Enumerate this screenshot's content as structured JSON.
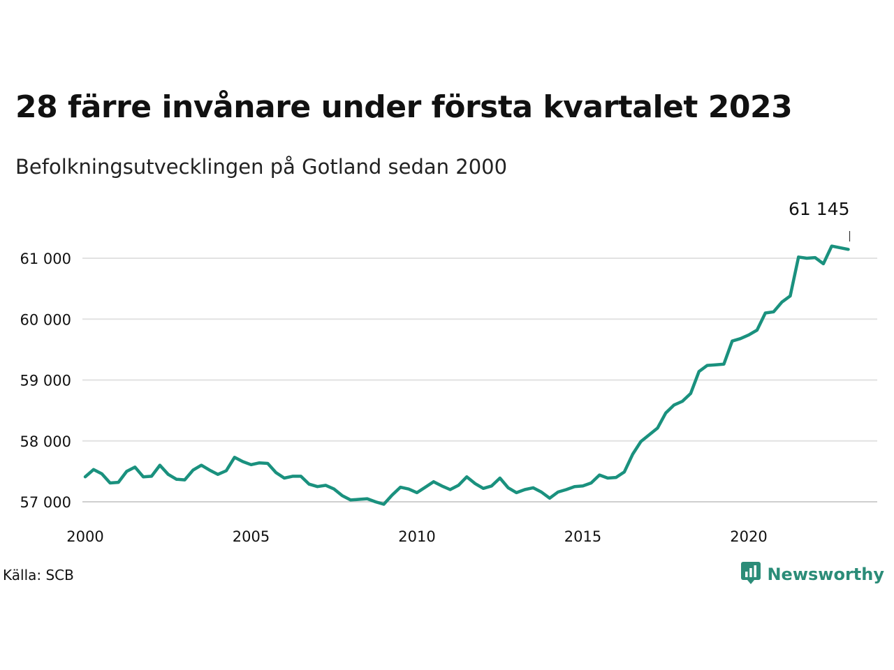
{
  "title": "28 färre invånare under första kvartalet 2023",
  "subtitle": "Befolkningsutvecklingen på Gotland sedan 2000",
  "source": "Källa: SCB",
  "brand": {
    "name": "Newsworthy",
    "icon": "newsworthy-logo-icon",
    "color": "#2b8c78"
  },
  "chart_data": {
    "type": "line",
    "x_label_format": "year",
    "xlim": [
      2000,
      2024
    ],
    "ylim": [
      56800,
      61500
    ],
    "x_ticks": [
      {
        "value": 2000,
        "label": "2000"
      },
      {
        "value": 2005,
        "label": "2005"
      },
      {
        "value": 2010,
        "label": "2010"
      },
      {
        "value": 2015,
        "label": "2015"
      },
      {
        "value": 2020,
        "label": "2020"
      }
    ],
    "y_ticks": [
      {
        "value": 57000,
        "label": "57 000"
      },
      {
        "value": 58000,
        "label": "58 000"
      },
      {
        "value": 59000,
        "label": "59 000"
      },
      {
        "value": 60000,
        "label": "60 000"
      },
      {
        "value": 61000,
        "label": "61 000"
      }
    ],
    "grid": true,
    "line_color": "#1a917e",
    "annotation": {
      "x": 2023.0,
      "y": 61145,
      "label": "61 145"
    },
    "series": [
      {
        "points": [
          [
            2000.0,
            57410
          ],
          [
            2000.25,
            57530
          ],
          [
            2000.5,
            57460
          ],
          [
            2000.75,
            57310
          ],
          [
            2001.0,
            57320
          ],
          [
            2001.25,
            57500
          ],
          [
            2001.5,
            57570
          ],
          [
            2001.75,
            57410
          ],
          [
            2002.0,
            57420
          ],
          [
            2002.25,
            57600
          ],
          [
            2002.5,
            57450
          ],
          [
            2002.75,
            57370
          ],
          [
            2003.0,
            57360
          ],
          [
            2003.25,
            57520
          ],
          [
            2003.5,
            57600
          ],
          [
            2003.75,
            57520
          ],
          [
            2004.0,
            57450
          ],
          [
            2004.25,
            57510
          ],
          [
            2004.5,
            57730
          ],
          [
            2004.75,
            57660
          ],
          [
            2005.0,
            57610
          ],
          [
            2005.25,
            57640
          ],
          [
            2005.5,
            57630
          ],
          [
            2005.75,
            57480
          ],
          [
            2006.0,
            57390
          ],
          [
            2006.25,
            57420
          ],
          [
            2006.5,
            57420
          ],
          [
            2006.75,
            57290
          ],
          [
            2007.0,
            57250
          ],
          [
            2007.25,
            57270
          ],
          [
            2007.5,
            57210
          ],
          [
            2007.75,
            57100
          ],
          [
            2008.0,
            57030
          ],
          [
            2008.25,
            57040
          ],
          [
            2008.5,
            57050
          ],
          [
            2008.75,
            57000
          ],
          [
            2009.0,
            56960
          ],
          [
            2009.25,
            57110
          ],
          [
            2009.5,
            57240
          ],
          [
            2009.75,
            57210
          ],
          [
            2010.0,
            57150
          ],
          [
            2010.25,
            57240
          ],
          [
            2010.5,
            57330
          ],
          [
            2010.75,
            57260
          ],
          [
            2011.0,
            57200
          ],
          [
            2011.25,
            57270
          ],
          [
            2011.5,
            57410
          ],
          [
            2011.75,
            57300
          ],
          [
            2012.0,
            57220
          ],
          [
            2012.25,
            57260
          ],
          [
            2012.5,
            57390
          ],
          [
            2012.75,
            57230
          ],
          [
            2013.0,
            57150
          ],
          [
            2013.25,
            57200
          ],
          [
            2013.5,
            57230
          ],
          [
            2013.75,
            57160
          ],
          [
            2014.0,
            57060
          ],
          [
            2014.25,
            57160
          ],
          [
            2014.5,
            57200
          ],
          [
            2014.75,
            57250
          ],
          [
            2015.0,
            57260
          ],
          [
            2015.25,
            57310
          ],
          [
            2015.5,
            57440
          ],
          [
            2015.75,
            57390
          ],
          [
            2016.0,
            57400
          ],
          [
            2016.25,
            57490
          ],
          [
            2016.5,
            57780
          ],
          [
            2016.75,
            57990
          ],
          [
            2017.0,
            58100
          ],
          [
            2017.25,
            58210
          ],
          [
            2017.5,
            58460
          ],
          [
            2017.75,
            58590
          ],
          [
            2018.0,
            58650
          ],
          [
            2018.25,
            58780
          ],
          [
            2018.5,
            59140
          ],
          [
            2018.75,
            59240
          ],
          [
            2019.0,
            59250
          ],
          [
            2019.25,
            59260
          ],
          [
            2019.5,
            59640
          ],
          [
            2019.75,
            59680
          ],
          [
            2020.0,
            59740
          ],
          [
            2020.25,
            59820
          ],
          [
            2020.5,
            60100
          ],
          [
            2020.75,
            60120
          ],
          [
            2021.0,
            60280
          ],
          [
            2021.25,
            60380
          ],
          [
            2021.5,
            61020
          ],
          [
            2021.75,
            61000
          ],
          [
            2022.0,
            61010
          ],
          [
            2022.25,
            60910
          ],
          [
            2022.5,
            61200
          ],
          [
            2022.75,
            61173
          ],
          [
            2023.0,
            61145
          ]
        ]
      }
    ]
  }
}
